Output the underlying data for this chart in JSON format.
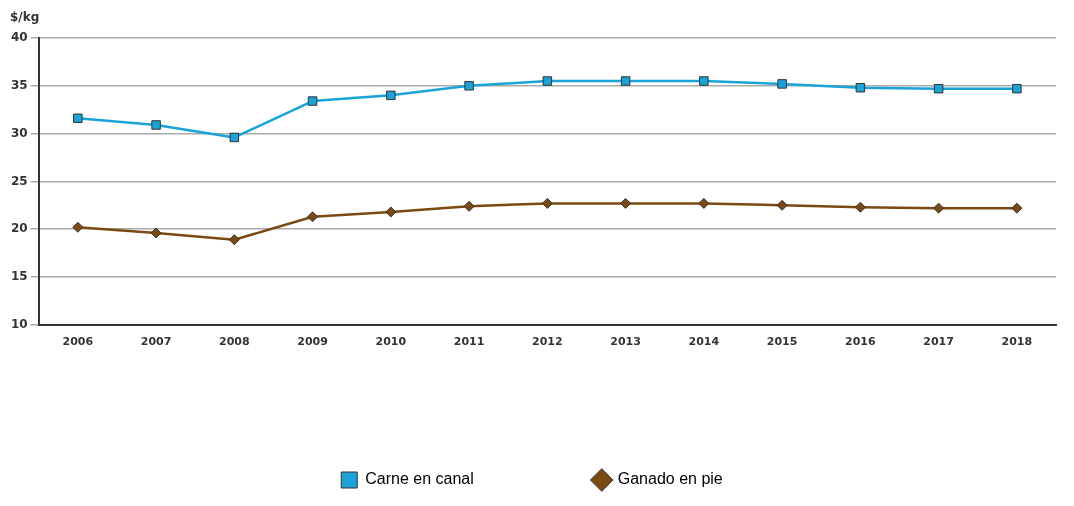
{
  "chart_data": {
    "type": "line",
    "ylabel": "$/kg",
    "categories": [
      "2006",
      "2007",
      "2008",
      "2009",
      "2010",
      "2011",
      "2012",
      "2013",
      "2014",
      "2015",
      "2016",
      "2017",
      "2018"
    ],
    "series": [
      {
        "name": "Carne en canal",
        "color": "#1aa3d6",
        "marker": "square",
        "values": [
          31.6,
          30.9,
          29.6,
          33.4,
          34.0,
          35.0,
          35.5,
          35.5,
          35.5,
          35.2,
          34.8,
          34.7,
          34.7
        ]
      },
      {
        "name": "Ganado en pie",
        "color": "#7a4a12",
        "marker": "diamond",
        "values": [
          20.2,
          19.6,
          18.9,
          21.3,
          21.8,
          22.4,
          22.7,
          22.7,
          22.7,
          22.5,
          22.3,
          22.2,
          22.2
        ]
      }
    ],
    "ylim": [
      10,
      40
    ],
    "yticks": [
      10,
      15,
      20,
      25,
      30,
      35,
      40
    ],
    "grid": "y",
    "legend": "bottom",
    "line_style": "solid"
  }
}
